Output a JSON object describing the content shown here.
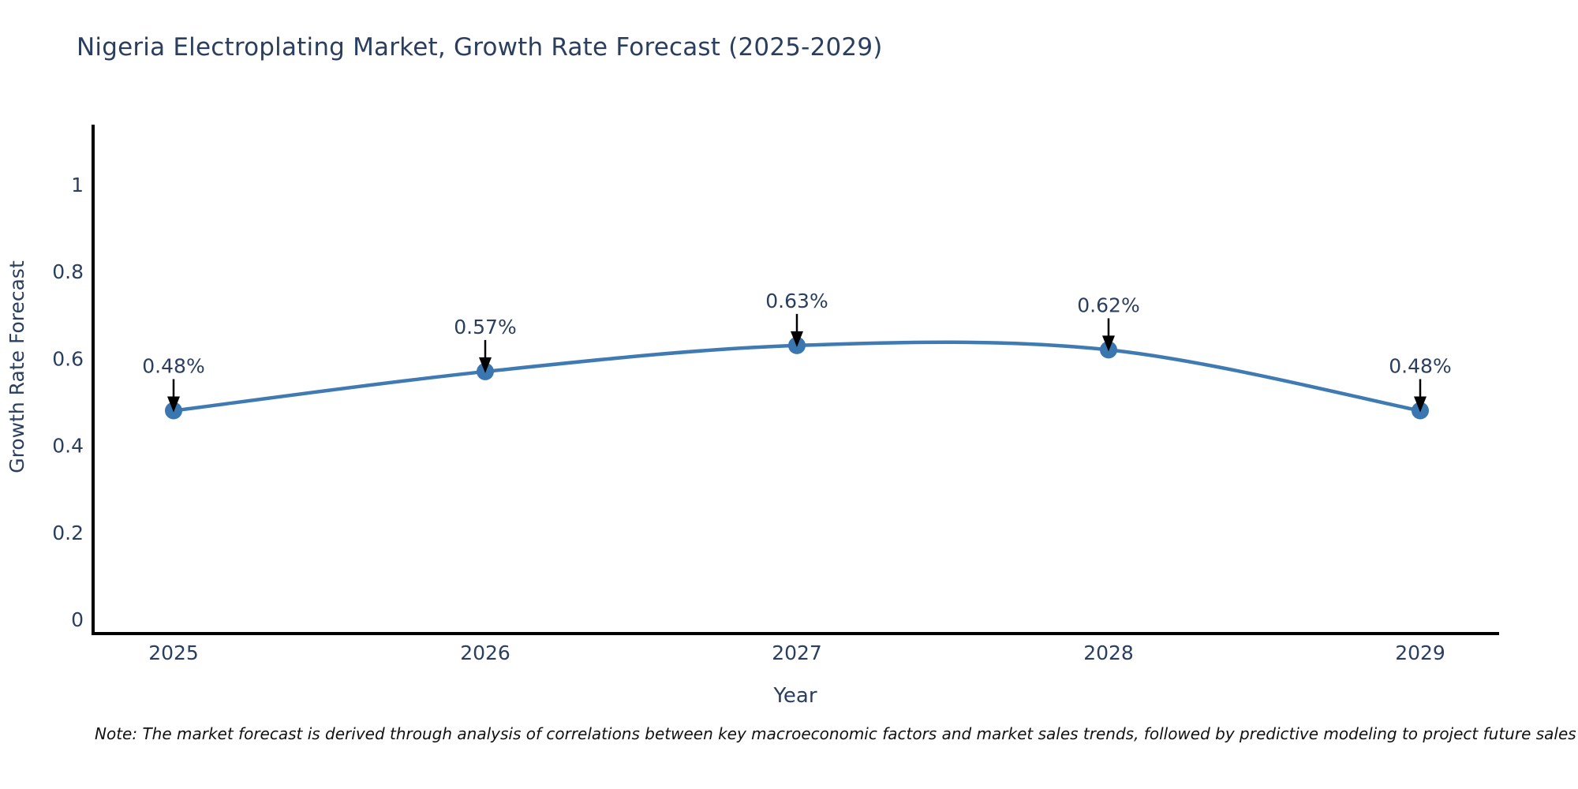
{
  "page": {
    "title": "Nigeria Electroplating Market, Growth Rate Forecast (2025-2029)",
    "footnote": "Note: The market forecast is derived through analysis of correlations between key macroeconomic factors and market sales trends, followed by predictive modeling to project future sales"
  },
  "chart_data": {
    "type": "line",
    "title": "Nigeria Electroplating Market, Growth Rate Forecast (2025-2029)",
    "x": [
      "2025",
      "2026",
      "2027",
      "2028",
      "2029"
    ],
    "series": [
      {
        "name": "Growth Rate Forecast",
        "values": [
          0.48,
          0.57,
          0.63,
          0.62,
          0.48
        ]
      }
    ],
    "point_labels": [
      "0.48%",
      "0.57%",
      "0.63%",
      "0.62%",
      "0.48%"
    ],
    "xlabel": "Year",
    "ylabel": "Growth Rate Forecast",
    "ylim": [
      0,
      1.08
    ],
    "yticks": [
      0,
      0.2,
      0.4,
      0.6,
      0.8,
      1
    ],
    "ytick_labels": [
      "0",
      "0.2",
      "0.4",
      "0.6",
      "0.8",
      "1"
    ],
    "grid": false,
    "legend_position": "none",
    "line_shape": "spline",
    "point_annotations_have_arrows": true,
    "colors": {
      "line": "#3f7ab3",
      "marker": "#3a76b0",
      "annotation_arrow": "#000000",
      "axis": "#000000",
      "text": "#2a3f5f",
      "note_text": "#111111",
      "background": "#ffffff"
    }
  }
}
